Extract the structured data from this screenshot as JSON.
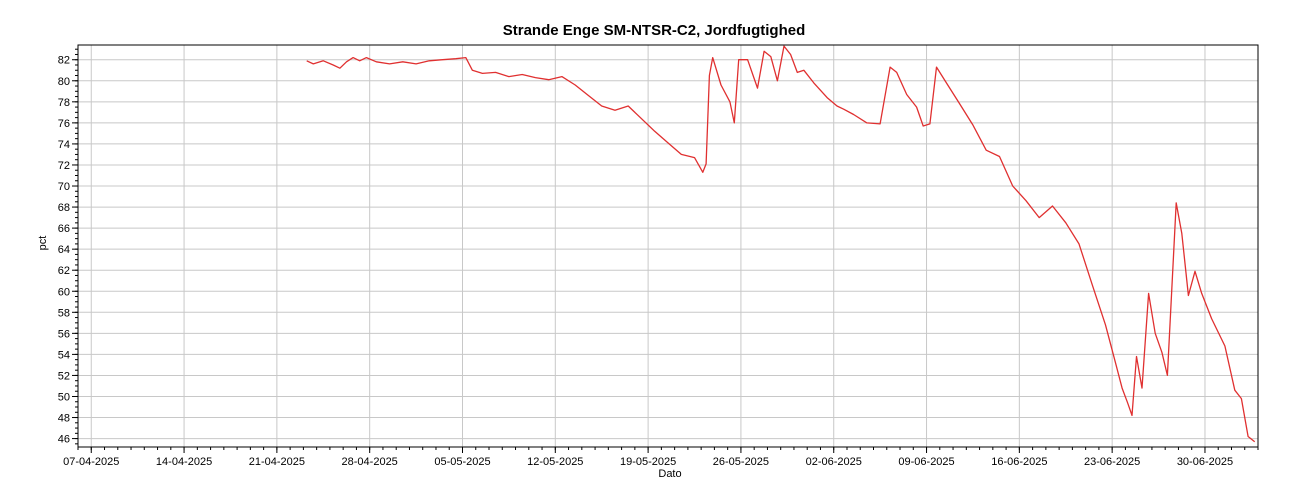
{
  "chart_data": {
    "type": "line",
    "title": "Strande Enge SM-NTSR-C2, Jordfugtighed",
    "xlabel": "Dato",
    "ylabel": "pct",
    "xlim": [
      "2025-04-06",
      "2025-07-04"
    ],
    "ylim": [
      45.2,
      83.4
    ],
    "grid": true,
    "x_tick_labels": [
      "07-04-2025",
      "14-04-2025",
      "21-04-2025",
      "28-04-2025",
      "05-05-2025",
      "12-05-2025",
      "19-05-2025",
      "26-05-2025",
      "02-06-2025",
      "09-06-2025",
      "16-06-2025",
      "23-06-2025",
      "30-06-2025"
    ],
    "y_tick_labels": [
      "46",
      "48",
      "50",
      "52",
      "54",
      "56",
      "58",
      "60",
      "62",
      "64",
      "66",
      "68",
      "70",
      "72",
      "74",
      "76",
      "78",
      "80",
      "82"
    ],
    "line_color": "#e03030",
    "series": [
      {
        "name": "",
        "x": [
          "2025-04-23",
          "2025-04-23",
          "2025-04-24",
          "2025-04-25",
          "2025-04-25",
          "2025-04-26",
          "2025-04-26",
          "2025-04-27",
          "2025-04-27",
          "2025-04-28",
          "2025-04-29",
          "2025-04-30",
          "2025-05-01",
          "2025-05-02",
          "2025-05-03",
          "2025-05-04",
          "2025-05-05",
          "2025-05-05",
          "2025-05-06",
          "2025-05-07",
          "2025-05-08",
          "2025-05-09",
          "2025-05-10",
          "2025-05-11",
          "2025-05-12",
          "2025-05-13",
          "2025-05-14",
          "2025-05-15",
          "2025-05-16",
          "2025-05-17",
          "2025-05-18",
          "2025-05-19",
          "2025-05-20",
          "2025-05-21",
          "2025-05-22",
          "2025-05-23",
          "2025-05-23",
          "2025-05-23",
          "2025-05-23",
          "2025-05-24",
          "2025-05-25",
          "2025-05-25",
          "2025-05-25",
          "2025-05-26",
          "2025-05-27",
          "2025-05-27",
          "2025-05-28",
          "2025-05-28",
          "2025-05-29",
          "2025-05-29",
          "2025-05-30",
          "2025-05-30",
          "2025-05-31",
          "2025-06-01",
          "2025-06-02",
          "2025-06-02",
          "2025-06-03",
          "2025-06-04",
          "2025-06-05",
          "2025-06-06",
          "2025-06-06",
          "2025-06-07",
          "2025-06-08",
          "2025-06-08",
          "2025-06-09",
          "2025-06-09",
          "2025-06-10",
          "2025-06-11",
          "2025-06-12",
          "2025-06-13",
          "2025-06-14",
          "2025-06-15",
          "2025-06-16",
          "2025-06-17",
          "2025-06-18",
          "2025-06-19",
          "2025-06-20",
          "2025-06-21",
          "2025-06-22",
          "2025-06-23",
          "2025-06-23",
          "2025-06-24",
          "2025-06-24",
          "2025-06-24",
          "2025-06-25",
          "2025-06-25",
          "2025-06-26",
          "2025-06-26",
          "2025-06-27",
          "2025-06-27",
          "2025-06-27",
          "2025-06-28",
          "2025-06-28",
          "2025-06-29",
          "2025-06-29",
          "2025-06-30",
          "2025-07-01",
          "2025-07-02",
          "2025-07-02",
          "2025-07-03",
          "2025-07-03"
        ],
        "y": [
          81.9,
          81.6,
          81.9,
          81.5,
          81.2,
          81.8,
          82.2,
          81.9,
          82.2,
          81.8,
          81.6,
          81.8,
          81.6,
          81.9,
          82.0,
          82.1,
          82.2,
          81.0,
          80.7,
          80.8,
          80.4,
          80.6,
          80.3,
          80.1,
          80.4,
          79.6,
          78.6,
          77.6,
          77.2,
          77.6,
          76.4,
          75.2,
          74.1,
          73.0,
          72.7,
          71.3,
          72.1,
          80.5,
          82.2,
          79.6,
          78.0,
          76.0,
          82.0,
          82.0,
          79.3,
          82.8,
          82.3,
          80.0,
          83.3,
          82.5,
          80.8,
          81.0,
          79.8,
          78.4,
          77.6,
          77.3,
          76.8,
          76.0,
          75.9,
          81.3,
          80.8,
          78.7,
          77.5,
          75.7,
          75.9,
          81.3,
          79.8,
          77.8,
          75.8,
          73.4,
          72.8,
          70.0,
          68.6,
          67.0,
          68.1,
          66.5,
          64.5,
          60.6,
          56.8,
          53.2,
          50.8,
          49.4,
          48.2,
          53.8,
          50.8,
          59.8,
          56.0,
          54.2,
          52.0,
          60.2,
          68.4,
          65.5,
          59.6,
          61.9,
          59.8,
          57.4,
          54.8,
          50.6,
          49.8,
          46.2,
          45.7
        ]
      }
    ]
  }
}
